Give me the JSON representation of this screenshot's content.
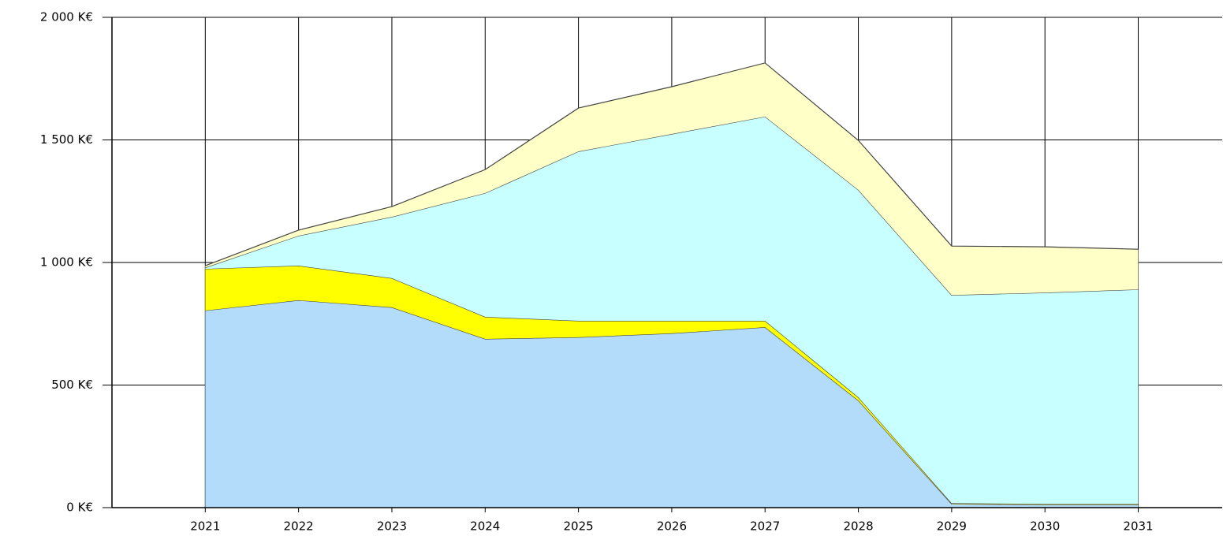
{
  "chart_data": {
    "type": "stacked-area",
    "x": [
      2021,
      2022,
      2023,
      2024,
      2025,
      2026,
      2027,
      2028,
      2029,
      2030,
      2031
    ],
    "series": [
      {
        "color": "#b3dcfb",
        "values": [
          804,
          846,
          817,
          688,
          695,
          711,
          736,
          437,
          15,
          12,
          12
        ]
      },
      {
        "color": "#ffff00",
        "values": [
          170,
          141,
          119,
          90,
          67,
          51,
          26,
          13,
          3,
          3,
          3
        ]
      },
      {
        "color": "#c8ffff",
        "values": [
          5,
          122,
          250,
          505,
          691,
          762,
          833,
          846,
          849,
          862,
          875
        ]
      },
      {
        "color": "#ffffc8",
        "values": [
          8,
          23,
          42,
          96,
          177,
          193,
          219,
          202,
          200,
          187,
          164
        ]
      }
    ],
    "xlim": [
      2020,
      2031.9
    ],
    "xticks": [
      2021,
      2022,
      2023,
      2024,
      2025,
      2026,
      2027,
      2028,
      2029,
      2030,
      2031
    ],
    "ylim": [
      0,
      2000
    ],
    "yticks": [
      {
        "value": 0,
        "label": "0 K€"
      },
      {
        "value": 500,
        "label": "500 K€"
      },
      {
        "value": 1000,
        "label": "1 000 K€"
      },
      {
        "value": 1500,
        "label": "1 500 K€"
      },
      {
        "value": 2000,
        "label": "2 000 K€"
      }
    ],
    "grid": true
  }
}
